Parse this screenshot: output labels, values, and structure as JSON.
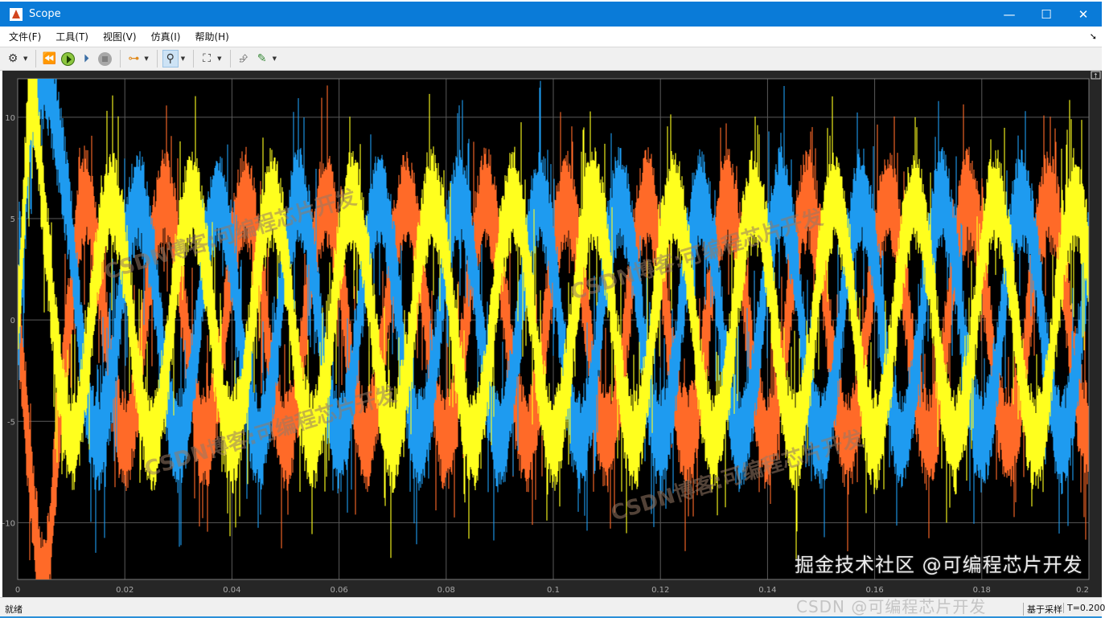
{
  "window": {
    "title": "Scope",
    "minimize": "—",
    "maximize": "☐",
    "close": "✕"
  },
  "menu": {
    "items": [
      "文件(F)",
      "工具(T)",
      "视图(V)",
      "仿真(I)",
      "帮助(H)"
    ],
    "undock_icon": "undock-arrow-icon"
  },
  "toolbar": {
    "icons": [
      "gear-icon",
      "step-back-icon",
      "run-icon",
      "step-forward-icon",
      "stop-icon",
      "layout-icon",
      "zoom-icon",
      "fit-axes-icon",
      "restore-icon",
      "measure-icon"
    ],
    "zoom_pressed": true
  },
  "status": {
    "ready": "就绪",
    "mode": "基于采样",
    "time": "T=0.200"
  },
  "watermarks": {
    "diagonal": "CSDN博客:可编程芯片开发",
    "bottom_main": "掘金技术社区 @可编程芯片开发",
    "bottom_sub": "CSDN @可编程芯片开发"
  },
  "chart_data": {
    "type": "line",
    "background": "#000000",
    "grid": true,
    "legend": "none",
    "xlim": [
      0,
      0.2
    ],
    "ylim": [
      -12.8,
      11.9
    ],
    "xticks": [
      "0",
      "0.02",
      "0.04",
      "0.06",
      "0.08",
      "0.1",
      "0.12",
      "0.14",
      "0.16",
      "0.18",
      "0.2"
    ],
    "yticks": [
      "10",
      "5",
      "0",
      "-5",
      "-10"
    ],
    "note_noise_band": 2.5,
    "x": [
      0,
      0.0025,
      0.005,
      0.0075,
      0.01,
      0.0125,
      0.015,
      0.0175,
      0.02,
      0.0225,
      0.025,
      0.0275,
      0.03,
      0.0325,
      0.035,
      0.0375,
      0.04,
      0.0425,
      0.045,
      0.0475,
      0.05,
      0.0525,
      0.055,
      0.0575,
      0.06,
      0.0625,
      0.065,
      0.0675,
      0.07,
      0.0725,
      0.075,
      0.0775,
      0.08,
      0.0825,
      0.085,
      0.0875,
      0.09,
      0.0925,
      0.095,
      0.0975,
      0.1,
      0.1025,
      0.105,
      0.1075,
      0.11,
      0.1125,
      0.115,
      0.1175,
      0.12,
      0.1225,
      0.125,
      0.1275,
      0.13,
      0.1325,
      0.135,
      0.1375,
      0.14,
      0.1425,
      0.145,
      0.1475,
      0.15,
      0.1525,
      0.155,
      0.1575,
      0.16,
      0.1625,
      0.165,
      0.1675,
      0.17,
      0.1725,
      0.175,
      0.1775,
      0.18,
      0.1825,
      0.185,
      0.1875,
      0.19,
      0.1925,
      0.195,
      0.1975,
      0.2
    ],
    "series": [
      {
        "color": "#ff6a28",
        "values": [
          0,
          -8,
          -13,
          -6,
          1,
          6,
          3,
          -3,
          -6,
          -3,
          3,
          6,
          3,
          -3,
          -6,
          -3,
          3,
          6,
          3,
          -3,
          -6,
          -3,
          3,
          6,
          3,
          -3,
          -6,
          -3,
          3,
          6,
          3,
          -3,
          -6,
          -3,
          3,
          6,
          3,
          -3,
          -6,
          -3,
          3,
          6,
          3,
          -3,
          -6,
          -3,
          3,
          6,
          3,
          -3,
          -6,
          -3,
          3,
          6,
          3,
          -3,
          -6,
          -3,
          3,
          6,
          3,
          -3,
          -6,
          -3,
          3,
          6,
          3,
          -3,
          -6,
          -3,
          3,
          6,
          3,
          -3,
          -6,
          -3,
          3,
          6,
          3,
          -3,
          -6
        ]
      },
      {
        "color": "#1e9bf0",
        "values": [
          0,
          10,
          12,
          9,
          4,
          -3,
          -6,
          -3,
          3,
          6,
          3,
          -3,
          -6,
          -3,
          3,
          6,
          3,
          -3,
          -6,
          -3,
          3,
          6,
          3,
          -3,
          -6,
          -3,
          3,
          6,
          3,
          -3,
          -6,
          -3,
          3,
          6,
          3,
          -3,
          -6,
          -3,
          3,
          6,
          3,
          -3,
          -6,
          -3,
          3,
          6,
          3,
          -3,
          -6,
          -3,
          3,
          6,
          3,
          -3,
          -6,
          -3,
          3,
          6,
          3,
          -3,
          -6,
          -3,
          3,
          6,
          3,
          -3,
          -6,
          -3,
          3,
          6,
          3,
          -3,
          -6,
          -3,
          3,
          6,
          3,
          -3,
          -6,
          -3,
          3
        ]
      },
      {
        "color": "#ffff1e",
        "values": [
          0,
          11,
          5,
          -2,
          -6,
          -3,
          3,
          6,
          3,
          -3,
          -6,
          -3,
          3,
          6,
          3,
          -3,
          -6,
          -3,
          3,
          6,
          3,
          -3,
          -6,
          -3,
          3,
          6,
          3,
          -3,
          -6,
          -3,
          3,
          6,
          3,
          -3,
          -6,
          -3,
          3,
          6,
          3,
          -3,
          -6,
          -3,
          3,
          6,
          3,
          -3,
          -6,
          -3,
          3,
          6,
          3,
          -3,
          -6,
          -3,
          3,
          6,
          3,
          -3,
          -6,
          -3,
          3,
          6,
          3,
          -3,
          -6,
          -3,
          3,
          6,
          3,
          -3,
          -6,
          -3,
          3,
          6,
          3,
          -3,
          -6,
          -3,
          3,
          6,
          3
        ]
      }
    ]
  }
}
